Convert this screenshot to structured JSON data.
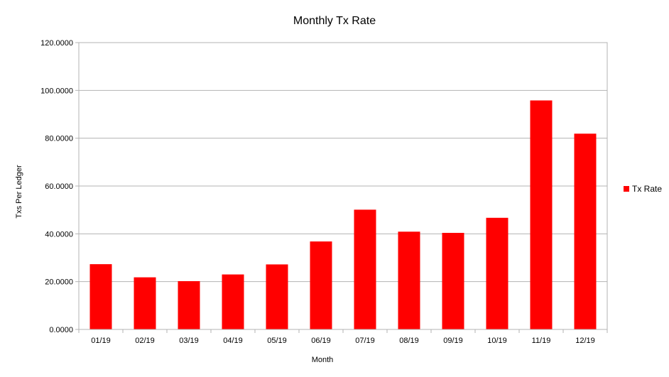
{
  "chart_data": {
    "type": "bar",
    "title": "Monthly Tx Rate",
    "xlabel": "Month",
    "ylabel": "Txs Per Ledger",
    "categories": [
      "01/19",
      "02/19",
      "03/19",
      "04/19",
      "05/19",
      "06/19",
      "07/19",
      "08/19",
      "09/19",
      "10/19",
      "11/19",
      "12/19"
    ],
    "series": [
      {
        "name": "Tx Rate",
        "color": "#ff0000",
        "values": [
          27.3,
          21.8,
          20.2,
          23.0,
          27.2,
          36.8,
          50.1,
          40.9,
          40.4,
          46.7,
          95.8,
          81.9
        ]
      }
    ],
    "ylim": [
      0,
      120
    ],
    "yticks": [
      "0.0000",
      "20.0000",
      "40.0000",
      "60.0000",
      "80.0000",
      "100.0000",
      "120.0000"
    ],
    "grid": true,
    "legend_position": "right"
  }
}
